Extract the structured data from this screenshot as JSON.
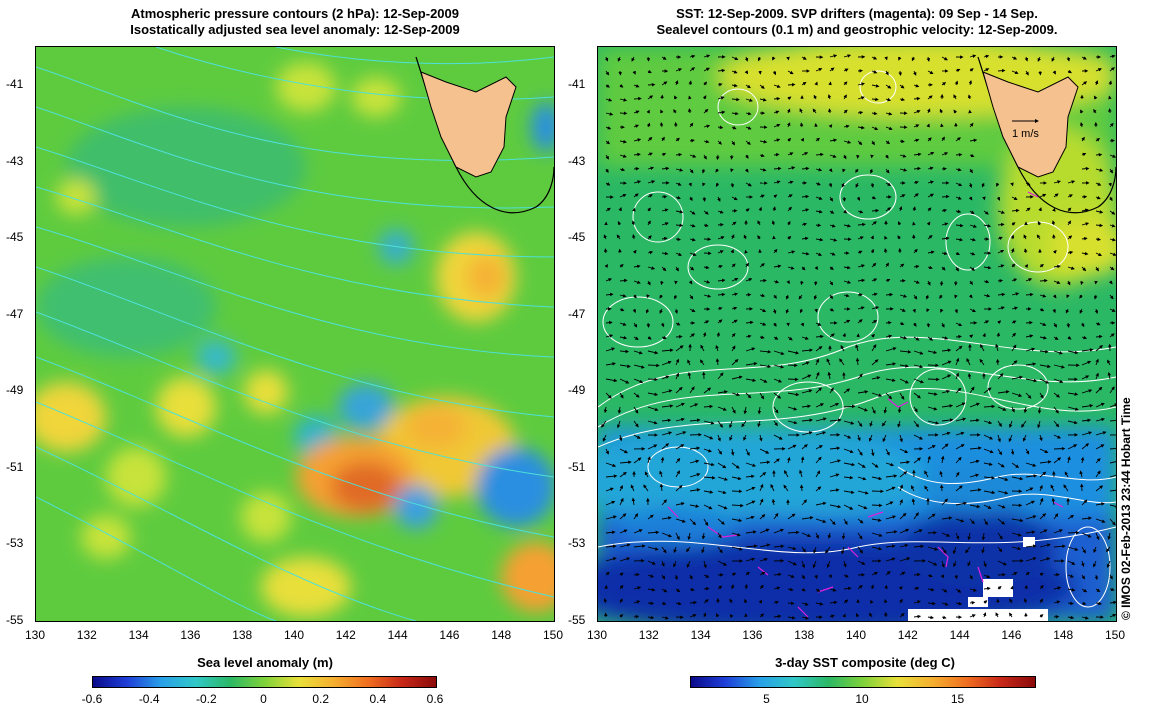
{
  "left_panel": {
    "title_line1": "Atmospheric pressure contours (2 hPa): 12-Sep-2009",
    "title_line2": "Isostatically adjusted sea level anomaly: 12-Sep-2009",
    "colorbar_title": "Sea level anomaly (m)",
    "colorbar_ticks": [
      "-0.6",
      "-0.4",
      "-0.2",
      "0",
      "0.2",
      "0.4",
      "0.6"
    ]
  },
  "right_panel": {
    "title_line1": "SST: 12-Sep-2009. SVP drifters (magenta): 09 Sep - 14 Sep.",
    "title_line2": "Sealevel contours (0.1 m) and geostrophic velocity: 12-Sep-2009.",
    "colorbar_title": "3-day SST composite (deg C)",
    "colorbar_ticks": [
      "5",
      "10",
      "15"
    ],
    "velocity_scale_label": "1 m/s"
  },
  "axes": {
    "lat_ticks": [
      "-41",
      "-43",
      "-45",
      "-47",
      "-49",
      "-51",
      "-53",
      "-55"
    ],
    "lon_ticks": [
      "130",
      "132",
      "134",
      "136",
      "138",
      "140",
      "142",
      "144",
      "146",
      "148",
      "150"
    ]
  },
  "copyright": "© IMOS 02-Feb-2013 23:44 Hobart Time",
  "colors": {
    "land": "#f5c18f",
    "pressure_contour": "#4fe0d8",
    "sealevel_contour": "#ffffff",
    "drifter": "#e020e0"
  }
}
